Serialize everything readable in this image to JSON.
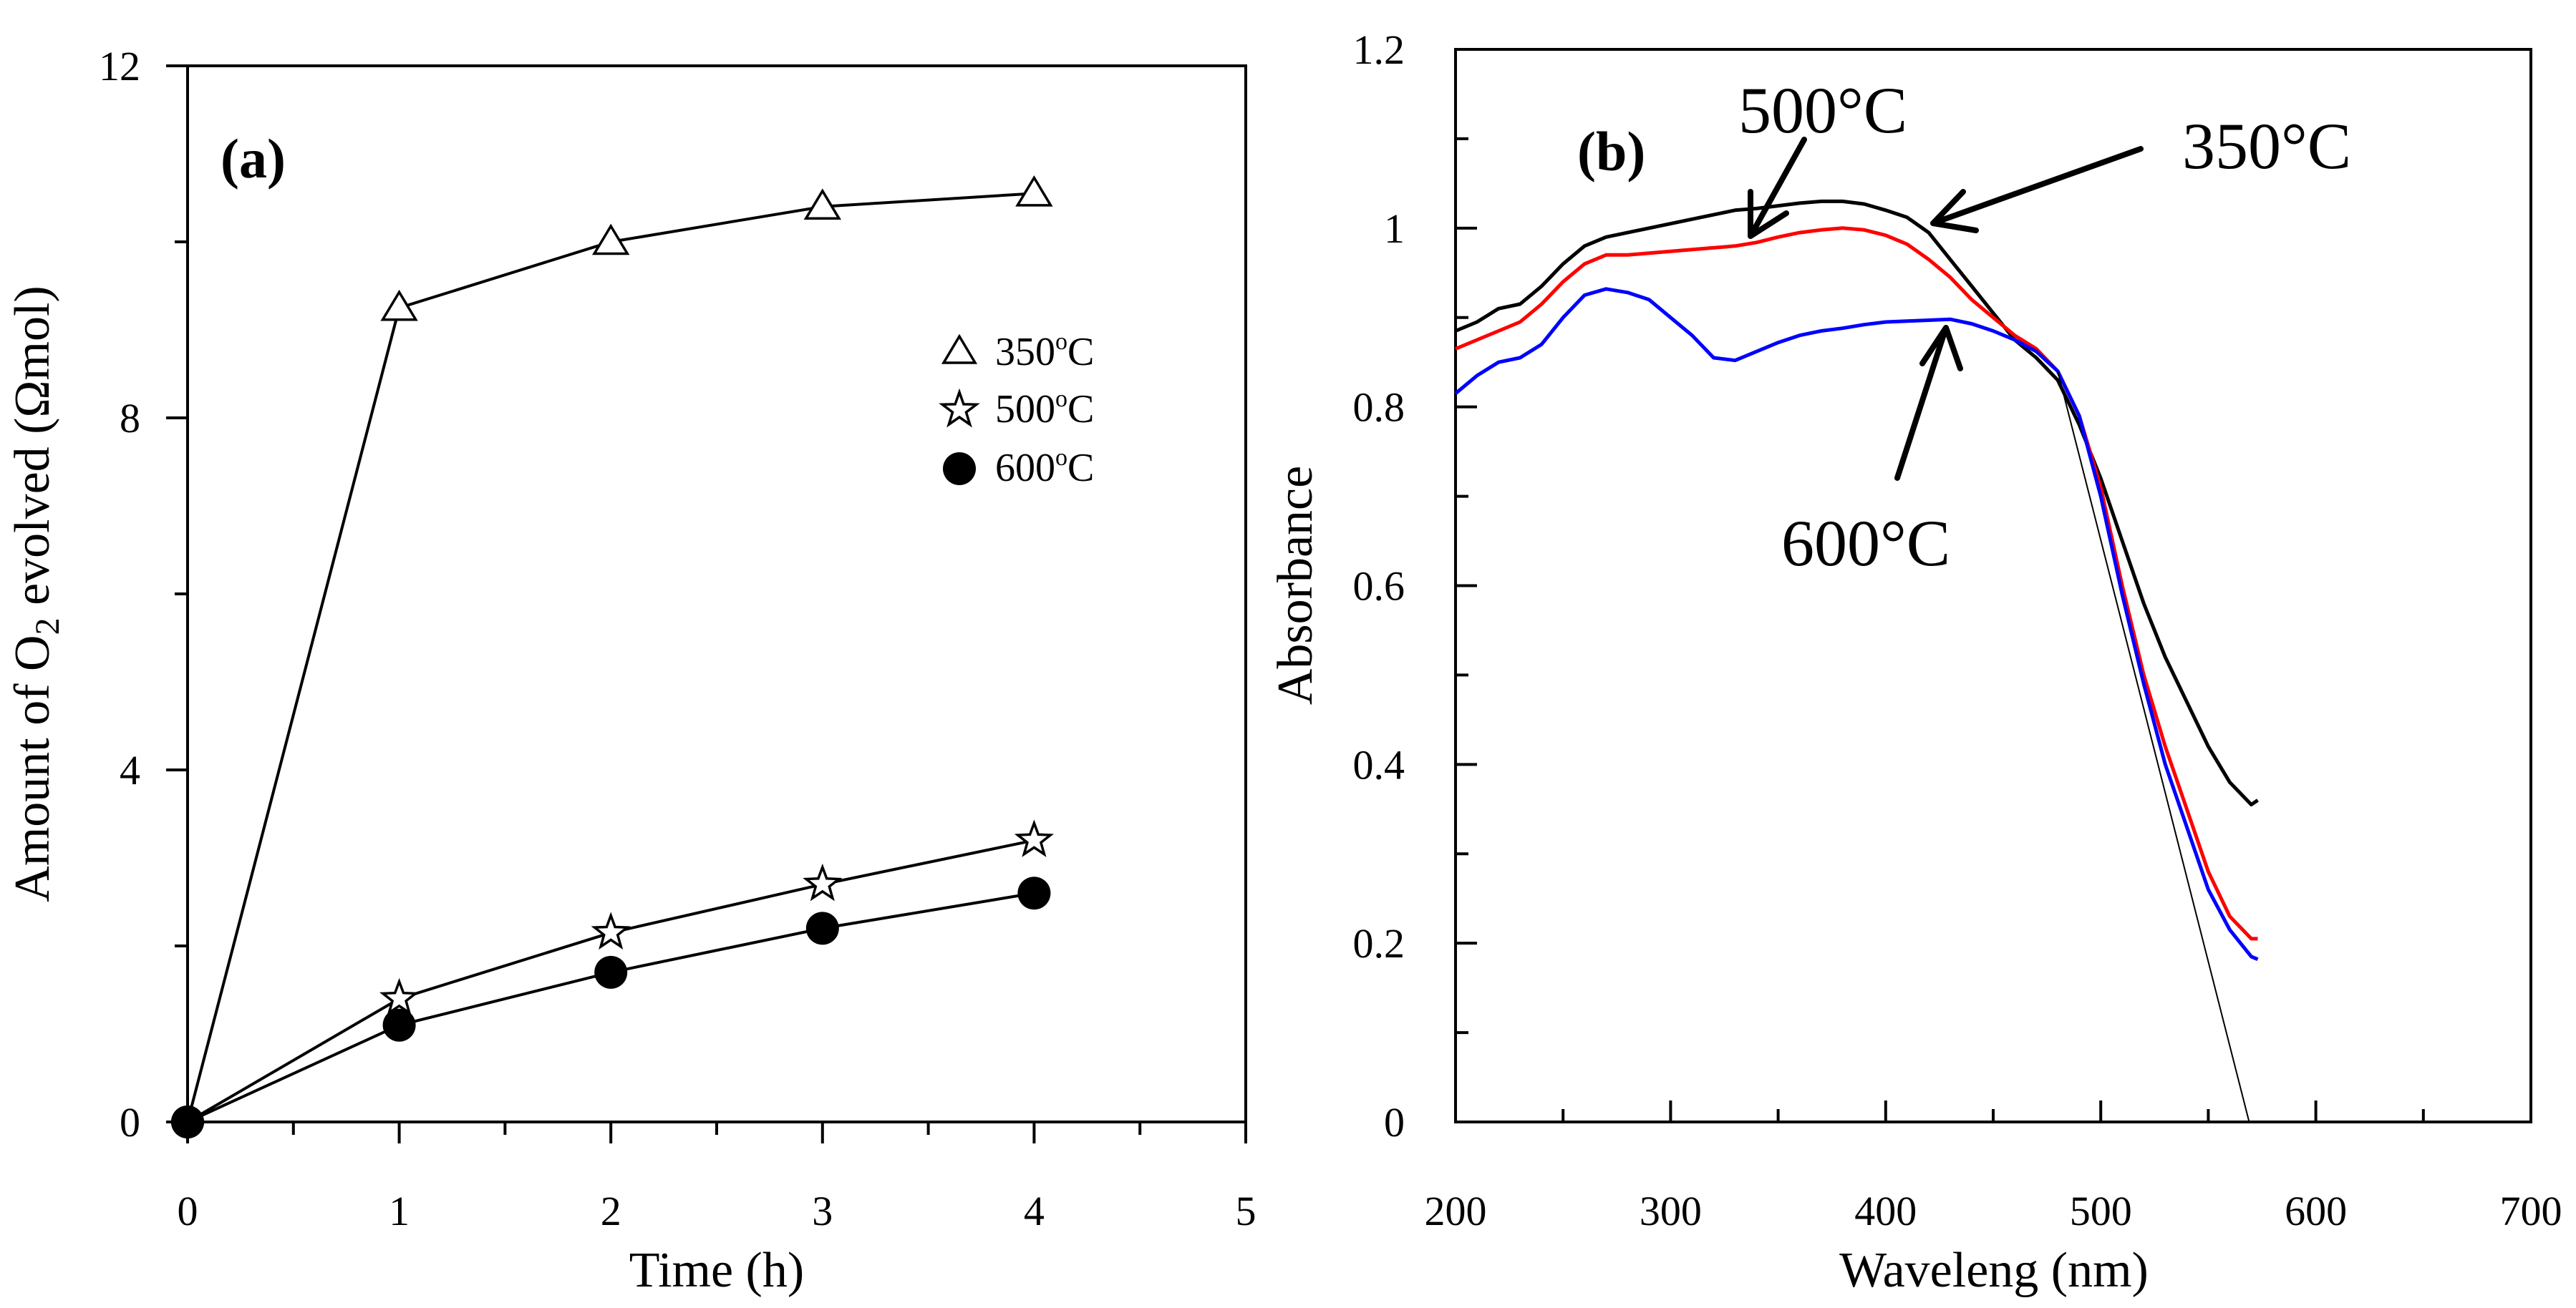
{
  "chart_data": [
    {
      "panel_label": "(a)",
      "type": "line",
      "xlabel": "Time (h)",
      "ylabel": "Amount of O2 evolved (Ωmol)",
      "ylabel_parts": {
        "pre": "Amount of O",
        "sub": "2",
        "post": " evolved (Ωmol)"
      },
      "xlim": [
        0,
        5
      ],
      "ylim": [
        0,
        12
      ],
      "xticks": [
        "0",
        "1",
        "2",
        "3",
        "4",
        "5"
      ],
      "yticks": [
        "0",
        "4",
        "8",
        "12"
      ],
      "x": [
        0,
        1,
        2,
        3,
        4
      ],
      "series": [
        {
          "name": "350°C",
          "legend_num": "350",
          "legend_sup": "o",
          "legend_unit": "C",
          "marker": "triangle",
          "values": [
            0,
            9.25,
            10.0,
            10.4,
            10.55
          ]
        },
        {
          "name": "500°C",
          "legend_num": "500",
          "legend_sup": "o",
          "legend_unit": "C",
          "marker": "star",
          "values": [
            0,
            1.4,
            2.15,
            2.7,
            3.2
          ]
        },
        {
          "name": "600°C",
          "legend_num": "600",
          "legend_sup": "o",
          "legend_unit": "C",
          "marker": "filled-circle",
          "values": [
            0,
            1.1,
            1.7,
            2.2,
            2.6
          ]
        }
      ],
      "legend_position": "right-middle"
    },
    {
      "panel_label": "(b)",
      "type": "line",
      "xlabel": "Waveleng (nm)",
      "ylabel": "Absorbance",
      "xlim": [
        200,
        700
      ],
      "ylim": [
        0,
        1.2
      ],
      "xticks": [
        "200",
        "300",
        "400",
        "500",
        "600",
        "700"
      ],
      "yticks": [
        "0",
        "0.2",
        "0.4",
        "0.6",
        "0.8",
        "1",
        "1.2"
      ],
      "series": [
        {
          "name": "350°C",
          "color": "#000000",
          "x": [
            200,
            210,
            220,
            230,
            240,
            250,
            260,
            270,
            280,
            290,
            300,
            310,
            320,
            330,
            340,
            350,
            360,
            370,
            380,
            390,
            400,
            410,
            420,
            430,
            440,
            450,
            460,
            470,
            480,
            490,
            500,
            510,
            520,
            530,
            540,
            550,
            560,
            570,
            573
          ],
          "y": [
            0.885,
            0.895,
            0.91,
            0.915,
            0.935,
            0.96,
            0.98,
            0.99,
            0.995,
            1.0,
            1.005,
            1.01,
            1.015,
            1.02,
            1.022,
            1.025,
            1.028,
            1.03,
            1.03,
            1.027,
            1.02,
            1.012,
            0.995,
            0.965,
            0.935,
            0.905,
            0.875,
            0.855,
            0.83,
            0.78,
            0.72,
            0.65,
            0.58,
            0.52,
            0.47,
            0.42,
            0.38,
            0.355,
            0.36
          ]
        },
        {
          "name": "500°C",
          "color": "#ff0000",
          "x": [
            200,
            210,
            220,
            230,
            240,
            250,
            260,
            270,
            280,
            290,
            300,
            310,
            320,
            330,
            340,
            350,
            360,
            370,
            380,
            390,
            400,
            410,
            420,
            430,
            440,
            450,
            460,
            470,
            480,
            490,
            500,
            510,
            520,
            530,
            540,
            550,
            560,
            570,
            573
          ],
          "y": [
            0.865,
            0.875,
            0.885,
            0.895,
            0.915,
            0.94,
            0.96,
            0.97,
            0.97,
            0.972,
            0.974,
            0.976,
            0.978,
            0.98,
            0.984,
            0.99,
            0.995,
            0.998,
            1.0,
            0.998,
            0.992,
            0.982,
            0.965,
            0.945,
            0.92,
            0.9,
            0.88,
            0.865,
            0.84,
            0.79,
            0.71,
            0.6,
            0.5,
            0.42,
            0.35,
            0.28,
            0.23,
            0.205,
            0.205
          ]
        },
        {
          "name": "600°C",
          "color": "#0000ff",
          "x": [
            200,
            210,
            220,
            230,
            240,
            250,
            260,
            270,
            280,
            290,
            300,
            310,
            320,
            330,
            340,
            350,
            360,
            370,
            380,
            390,
            400,
            410,
            420,
            430,
            440,
            450,
            460,
            470,
            480,
            490,
            500,
            510,
            520,
            530,
            540,
            550,
            560,
            570,
            573
          ],
          "y": [
            0.815,
            0.835,
            0.85,
            0.855,
            0.87,
            0.9,
            0.925,
            0.932,
            0.928,
            0.92,
            0.9,
            0.88,
            0.855,
            0.852,
            0.862,
            0.872,
            0.88,
            0.885,
            0.888,
            0.892,
            0.895,
            0.896,
            0.897,
            0.898,
            0.893,
            0.885,
            0.875,
            0.862,
            0.84,
            0.79,
            0.7,
            0.59,
            0.49,
            0.4,
            0.33,
            0.26,
            0.215,
            0.185,
            0.182
          ]
        },
        {
          "name": "extrapolation",
          "color": "#000000",
          "x": [
            480,
            569
          ],
          "y": [
            0.84,
            0.0
          ]
        }
      ],
      "annotations": [
        {
          "text": "500°C",
          "target_x": 335,
          "target_y": 0.98
        },
        {
          "text": "350°C",
          "target_x": 422,
          "target_y": 1.0
        },
        {
          "text": "600°C",
          "target_x": 430,
          "target_y": 0.9
        }
      ]
    }
  ]
}
